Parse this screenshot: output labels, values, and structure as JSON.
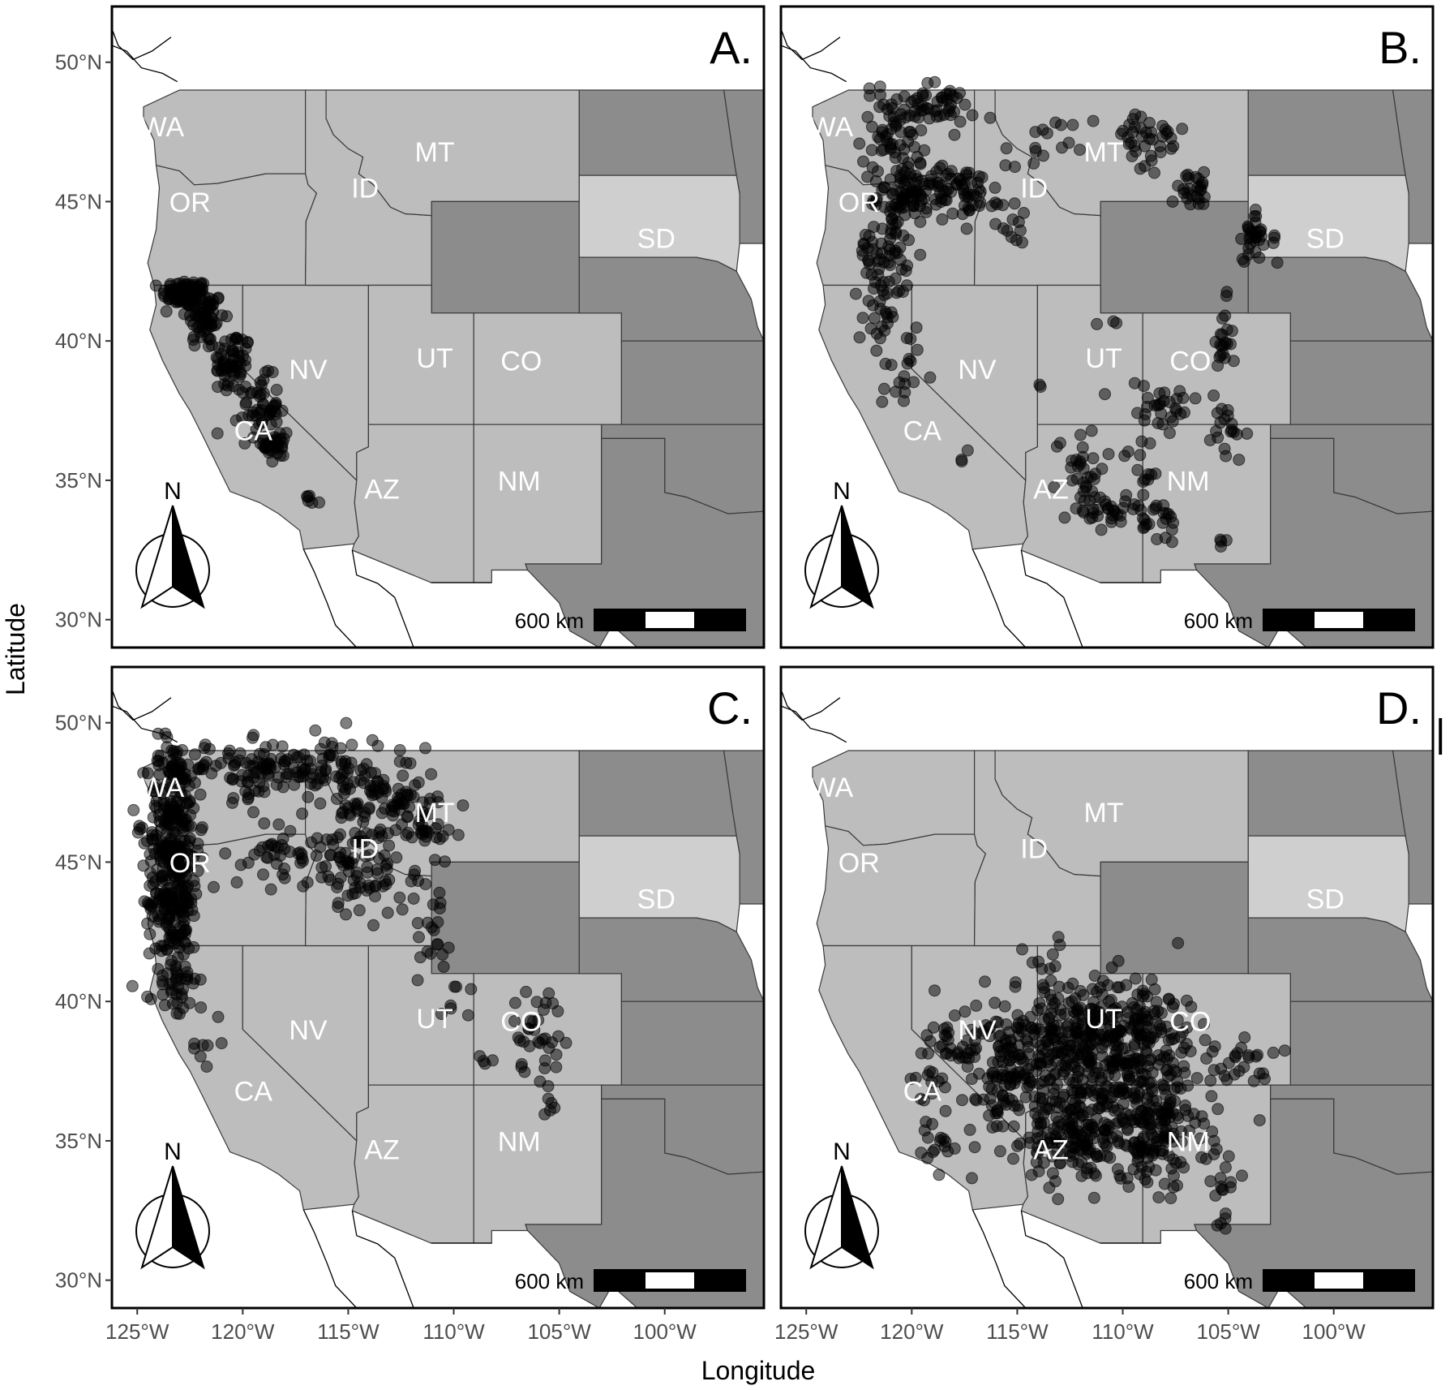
{
  "figure": {
    "xlabel": "Longitude",
    "ylabel": "Latitude",
    "x_ticks": [
      "125°W",
      "120°W",
      "115°W",
      "110°W",
      "105°W",
      "100°W"
    ],
    "y_ticks": [
      "50°N",
      "45°N",
      "40°N",
      "35°N",
      "30°N"
    ],
    "stray_mark": "|"
  },
  "map": {
    "xlim": [
      -126.2,
      -95.3
    ],
    "ylim": [
      29.0,
      52.0
    ],
    "scale_bar_label": "600 km",
    "north_label": "N",
    "colors": {
      "study_state": "#bdbdbd",
      "other_state": "#8c8c8c",
      "dakota": "#cfcfcf",
      "border": "#3a3a3a",
      "point": "#000000"
    },
    "state_labels": [
      {
        "code": "WA",
        "lon": -123.8,
        "lat": 47.6
      },
      {
        "code": "OR",
        "lon": -122.5,
        "lat": 44.9
      },
      {
        "code": "CA",
        "lon": -119.5,
        "lat": 36.7
      },
      {
        "code": "NV",
        "lon": -116.9,
        "lat": 38.9
      },
      {
        "code": "ID",
        "lon": -114.2,
        "lat": 45.4
      },
      {
        "code": "MT",
        "lon": -110.9,
        "lat": 46.7
      },
      {
        "code": "UT",
        "lon": -110.9,
        "lat": 39.3
      },
      {
        "code": "AZ",
        "lon": -113.4,
        "lat": 34.6
      },
      {
        "code": "CO",
        "lon": -106.8,
        "lat": 39.2
      },
      {
        "code": "NM",
        "lon": -106.9,
        "lat": 34.9
      },
      {
        "code": "SD",
        "lon": -100.4,
        "lat": 43.6
      }
    ]
  },
  "chart_data": [
    {
      "panel": "A.",
      "type": "scatter",
      "clusters": [
        {
          "lon": -122.7,
          "lat": 41.7,
          "slon": 0.55,
          "slat": 0.25,
          "n": 90
        },
        {
          "lon": -121.8,
          "lat": 40.8,
          "slon": 0.45,
          "slat": 0.55,
          "n": 60
        },
        {
          "lon": -120.5,
          "lat": 39.2,
          "slon": 0.45,
          "slat": 0.6,
          "n": 60
        },
        {
          "lon": -119.2,
          "lat": 37.6,
          "slon": 0.45,
          "slat": 0.55,
          "n": 50
        },
        {
          "lon": -118.4,
          "lat": 36.3,
          "slon": 0.3,
          "slat": 0.4,
          "n": 35
        },
        {
          "lon": -116.9,
          "lat": 34.2,
          "slon": 0.25,
          "slat": 0.12,
          "n": 6
        }
      ]
    },
    {
      "panel": "B.",
      "type": "scatter",
      "clusters": [
        {
          "lon": -120.8,
          "lat": 47.5,
          "slon": 0.8,
          "slat": 0.9,
          "n": 70
        },
        {
          "lon": -118.8,
          "lat": 48.4,
          "slon": 0.9,
          "slat": 0.35,
          "n": 40
        },
        {
          "lon": -120.0,
          "lat": 45.2,
          "slon": 0.8,
          "slat": 0.4,
          "n": 80
        },
        {
          "lon": -117.4,
          "lat": 45.4,
          "slon": 0.7,
          "slat": 0.5,
          "n": 50
        },
        {
          "lon": -121.4,
          "lat": 43.2,
          "slon": 0.6,
          "slat": 0.8,
          "n": 60
        },
        {
          "lon": -121.1,
          "lat": 40.9,
          "slon": 0.6,
          "slat": 0.8,
          "n": 30
        },
        {
          "lon": -120.3,
          "lat": 38.8,
          "slon": 0.4,
          "slat": 0.6,
          "n": 14
        },
        {
          "lon": -115.2,
          "lat": 44.3,
          "slon": 0.4,
          "slat": 0.4,
          "n": 14
        },
        {
          "lon": -114.0,
          "lat": 46.8,
          "slon": 0.8,
          "slat": 0.6,
          "n": 16
        },
        {
          "lon": -109.0,
          "lat": 47.1,
          "slon": 1.0,
          "slat": 0.7,
          "n": 40
        },
        {
          "lon": -106.6,
          "lat": 45.4,
          "slon": 0.6,
          "slat": 0.3,
          "n": 25
        },
        {
          "lon": -103.8,
          "lat": 43.9,
          "slon": 0.25,
          "slat": 0.5,
          "n": 30
        },
        {
          "lon": -102.4,
          "lat": 43.3,
          "slon": 0.4,
          "slat": 0.2,
          "n": 4
        },
        {
          "lon": -105.3,
          "lat": 39.8,
          "slon": 0.25,
          "slat": 0.8,
          "n": 22
        },
        {
          "lon": -105.0,
          "lat": 36.7,
          "slon": 0.4,
          "slat": 0.6,
          "n": 18
        },
        {
          "lon": -108.3,
          "lat": 37.6,
          "slon": 1.0,
          "slat": 0.5,
          "n": 30
        },
        {
          "lon": -112.0,
          "lat": 35.5,
          "slon": 0.6,
          "slat": 0.7,
          "n": 30
        },
        {
          "lon": -110.3,
          "lat": 34.0,
          "slon": 1.0,
          "slat": 0.35,
          "n": 40
        },
        {
          "lon": -108.0,
          "lat": 33.4,
          "slon": 0.5,
          "slat": 0.4,
          "n": 16
        },
        {
          "lon": -109.1,
          "lat": 35.5,
          "slon": 0.5,
          "slat": 0.6,
          "n": 12
        },
        {
          "lon": -105.3,
          "lat": 33.1,
          "slon": 0.2,
          "slat": 0.4,
          "n": 4
        },
        {
          "lon": -117.6,
          "lat": 36.3,
          "slon": 0.6,
          "slat": 0.5,
          "n": 3
        },
        {
          "lon": -114.0,
          "lat": 38.3,
          "slon": 0.3,
          "slat": 0.3,
          "n": 2
        },
        {
          "lon": -110.7,
          "lat": 40.6,
          "slon": 0.3,
          "slat": 0.1,
          "n": 3
        }
      ]
    },
    {
      "panel": "C.",
      "type": "scatter",
      "clusters": [
        {
          "lon": -123.3,
          "lat": 46.5,
          "slon": 0.6,
          "slat": 1.5,
          "n": 200
        },
        {
          "lon": -123.3,
          "lat": 43.5,
          "slon": 0.6,
          "slat": 1.4,
          "n": 180
        },
        {
          "lon": -122.9,
          "lat": 40.8,
          "slon": 0.4,
          "slat": 0.8,
          "n": 25
        },
        {
          "lon": -122.0,
          "lat": 38.6,
          "slon": 0.5,
          "slat": 0.6,
          "n": 8
        },
        {
          "lon": -119.8,
          "lat": 48.3,
          "slon": 1.6,
          "slat": 0.5,
          "n": 80
        },
        {
          "lon": -116.0,
          "lat": 48.4,
          "slon": 1.5,
          "slat": 0.6,
          "n": 80
        },
        {
          "lon": -113.3,
          "lat": 47.1,
          "slon": 1.3,
          "slat": 0.8,
          "n": 80
        },
        {
          "lon": -114.4,
          "lat": 44.7,
          "slon": 1.0,
          "slat": 0.8,
          "n": 70
        },
        {
          "lon": -118.0,
          "lat": 45.3,
          "slon": 1.3,
          "slat": 0.6,
          "n": 50
        },
        {
          "lon": -111.3,
          "lat": 46.5,
          "slon": 0.6,
          "slat": 0.6,
          "n": 30
        },
        {
          "lon": -111.4,
          "lat": 43.0,
          "slon": 0.5,
          "slat": 0.9,
          "n": 22
        },
        {
          "lon": -110.3,
          "lat": 40.2,
          "slon": 0.7,
          "slat": 0.6,
          "n": 10
        },
        {
          "lon": -106.0,
          "lat": 39.0,
          "slon": 0.6,
          "slat": 0.8,
          "n": 35
        },
        {
          "lon": -105.5,
          "lat": 36.2,
          "slon": 0.3,
          "slat": 0.5,
          "n": 6
        },
        {
          "lon": -108.6,
          "lat": 38.0,
          "slon": 0.6,
          "slat": 0.3,
          "n": 4
        }
      ]
    },
    {
      "panel": "D.",
      "type": "scatter",
      "clusters": [
        {
          "lon": -112.5,
          "lat": 38.3,
          "slon": 2.0,
          "slat": 1.3,
          "n": 280
        },
        {
          "lon": -109.5,
          "lat": 38.6,
          "slon": 1.6,
          "slat": 1.2,
          "n": 200
        },
        {
          "lon": -112.0,
          "lat": 35.2,
          "slon": 1.7,
          "slat": 0.9,
          "n": 180
        },
        {
          "lon": -108.4,
          "lat": 35.4,
          "slon": 1.3,
          "slat": 1.0,
          "n": 140
        },
        {
          "lon": -115.5,
          "lat": 37.2,
          "slon": 1.4,
          "slat": 1.3,
          "n": 80
        },
        {
          "lon": -117.6,
          "lat": 38.6,
          "slon": 0.8,
          "slat": 0.6,
          "n": 30
        },
        {
          "lon": -119.0,
          "lat": 36.8,
          "slon": 0.5,
          "slat": 1.4,
          "n": 30
        },
        {
          "lon": -104.3,
          "lat": 37.6,
          "slon": 0.9,
          "slat": 0.6,
          "n": 25
        },
        {
          "lon": -105.3,
          "lat": 33.6,
          "slon": 0.4,
          "slat": 0.8,
          "n": 18
        },
        {
          "lon": -113.4,
          "lat": 41.4,
          "slon": 0.4,
          "slat": 0.4,
          "n": 10
        },
        {
          "lon": -118.6,
          "lat": 34.8,
          "slon": 0.3,
          "slat": 0.1,
          "n": 6
        }
      ]
    }
  ]
}
